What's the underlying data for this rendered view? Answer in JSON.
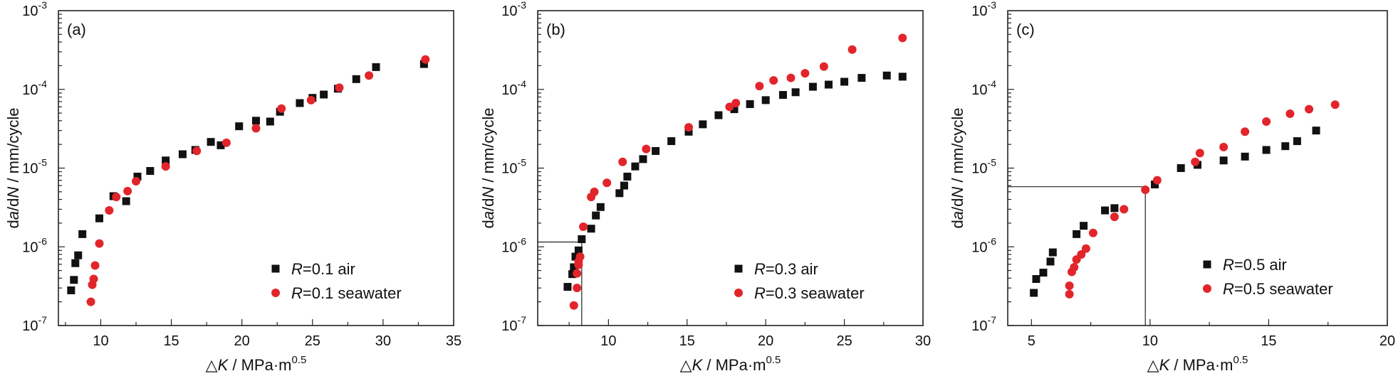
{
  "chart_data": [
    {
      "type": "scatter",
      "panel_label": "(a)",
      "xlabel": {
        "prefix": "△",
        "var": "K",
        "suffix": " / MPa·m",
        "sup": "0.5"
      },
      "ylabel": {
        "pre": "d",
        "v1": "a",
        "mid": "/d",
        "v2": "N",
        "post": " / mm/cycle"
      },
      "xlim": [
        7,
        35
      ],
      "ylim": [
        1e-07,
        0.001
      ],
      "yscale": "log",
      "xticks": [
        10,
        15,
        20,
        25,
        30,
        35
      ],
      "ytick_exponents": [
        "-7",
        "-6",
        "-5",
        "-4",
        "-3"
      ],
      "tick_base": "10",
      "legend": {
        "position": "bottom-right",
        "entries": [
          {
            "pre": "",
            "var": "R",
            "text": "=0.1 air"
          },
          {
            "pre": "",
            "var": "R",
            "text": "=0.1 seawater"
          }
        ]
      },
      "guide": null,
      "series": [
        {
          "name": "R=0.1 air",
          "marker": "square",
          "color": "#111111",
          "points": [
            [
              7.9,
              2.8e-07
            ],
            [
              8.1,
              3.8e-07
            ],
            [
              8.2,
              6.2e-07
            ],
            [
              8.4,
              7.8e-07
            ],
            [
              8.7,
              1.45e-06
            ],
            [
              9.9,
              2.3e-06
            ],
            [
              10.9,
              4.4e-06
            ],
            [
              11.8,
              3.8e-06
            ],
            [
              12.6,
              7.8e-06
            ],
            [
              13.5,
              9.2e-06
            ],
            [
              14.6,
              1.25e-05
            ],
            [
              15.8,
              1.5e-05
            ],
            [
              16.7,
              1.7e-05
            ],
            [
              17.8,
              2.15e-05
            ],
            [
              18.5,
              1.95e-05
            ],
            [
              19.8,
              3.4e-05
            ],
            [
              21.0,
              4e-05
            ],
            [
              22.0,
              3.9e-05
            ],
            [
              22.7,
              5.2e-05
            ],
            [
              24.1,
              6.7e-05
            ],
            [
              25.0,
              7.8e-05
            ],
            [
              25.8,
              8.6e-05
            ],
            [
              26.8,
              0.000102
            ],
            [
              28.1,
              0.000135
            ],
            [
              29.5,
              0.000192
            ],
            [
              32.9,
              0.00021
            ]
          ]
        },
        {
          "name": "R=0.1 seawater",
          "marker": "circle",
          "color": "#e2252b",
          "points": [
            [
              9.3,
              2e-07
            ],
            [
              9.4,
              3.3e-07
            ],
            [
              9.5,
              3.9e-07
            ],
            [
              9.6,
              5.8e-07
            ],
            [
              9.9,
              1.1e-06
            ],
            [
              10.6,
              2.9e-06
            ],
            [
              11.1,
              4.3e-06
            ],
            [
              11.9,
              5.1e-06
            ],
            [
              12.5,
              6.8e-06
            ],
            [
              14.6,
              1.05e-05
            ],
            [
              16.8,
              1.65e-05
            ],
            [
              18.9,
              2.1e-05
            ],
            [
              21.0,
              3.2e-05
            ],
            [
              22.8,
              5.7e-05
            ],
            [
              24.9,
              7.3e-05
            ],
            [
              26.9,
              0.000105
            ],
            [
              29.0,
              0.00015
            ],
            [
              33.0,
              0.00024
            ]
          ]
        }
      ]
    },
    {
      "type": "scatter",
      "panel_label": "(b)",
      "xlabel": {
        "prefix": "△",
        "var": "K",
        "suffix": " / MPa·m",
        "sup": "0.5"
      },
      "ylabel": {
        "pre": "d",
        "v1": "a",
        "mid": "/d",
        "v2": "N",
        "post": " / mm/cycle"
      },
      "xlim": [
        5.5,
        30
      ],
      "ylim": [
        1e-07,
        0.001
      ],
      "yscale": "log",
      "xticks": [
        10,
        15,
        20,
        25,
        30
      ],
      "ytick_exponents": [
        "-7",
        "-6",
        "-5",
        "-4",
        "-3"
      ],
      "tick_base": "10",
      "legend": {
        "position": "bottom-right",
        "entries": [
          {
            "pre": "",
            "var": "R",
            "text": "=0.3 air"
          },
          {
            "pre": "",
            "var": "R",
            "text": "=0.3 seawater"
          }
        ]
      },
      "guide": {
        "x": 8.3,
        "y": 1.15e-06
      },
      "series": [
        {
          "name": "R=0.3 air",
          "marker": "square",
          "color": "#111111",
          "points": [
            [
              7.4,
              3.1e-07
            ],
            [
              7.7,
              4.5e-07
            ],
            [
              7.8,
              5.5e-07
            ],
            [
              7.9,
              7.5e-07
            ],
            [
              8.1,
              9e-07
            ],
            [
              8.3,
              1.25e-06
            ],
            [
              8.9,
              1.7e-06
            ],
            [
              9.2,
              2.5e-06
            ],
            [
              9.5,
              3.2e-06
            ],
            [
              10.7,
              4.8e-06
            ],
            [
              11.0,
              6e-06
            ],
            [
              11.2,
              7.8e-06
            ],
            [
              11.7,
              1.05e-05
            ],
            [
              12.2,
              1.3e-05
            ],
            [
              13.0,
              1.65e-05
            ],
            [
              14.0,
              2.2e-05
            ],
            [
              15.1,
              2.9e-05
            ],
            [
              16.0,
              3.6e-05
            ],
            [
              17.0,
              4.7e-05
            ],
            [
              18.0,
              5.6e-05
            ],
            [
              19.0,
              6.5e-05
            ],
            [
              20.0,
              7.3e-05
            ],
            [
              21.1,
              8.5e-05
            ],
            [
              21.9,
              9.2e-05
            ],
            [
              23.0,
              0.000108
            ],
            [
              24.0,
              0.000115
            ],
            [
              25.0,
              0.000125
            ],
            [
              26.1,
              0.00014
            ],
            [
              27.7,
              0.00015
            ],
            [
              28.7,
              0.000145
            ]
          ]
        },
        {
          "name": "R=0.3 seawater",
          "marker": "circle",
          "color": "#e2252b",
          "points": [
            [
              7.8,
              1.8e-07
            ],
            [
              8.0,
              3e-07
            ],
            [
              8.0,
              4.6e-07
            ],
            [
              8.1,
              5.9e-07
            ],
            [
              8.2,
              7.5e-07
            ],
            [
              8.1,
              6.5e-07
            ],
            [
              8.4,
              1.8e-06
            ],
            [
              8.9,
              4.3e-06
            ],
            [
              9.1,
              5e-06
            ],
            [
              9.9,
              6.5e-06
            ],
            [
              10.9,
              1.2e-05
            ],
            [
              12.4,
              1.75e-05
            ],
            [
              15.1,
              3.3e-05
            ],
            [
              17.7,
              6e-05
            ],
            [
              18.1,
              6.7e-05
            ],
            [
              19.6,
              0.00011
            ],
            [
              20.5,
              0.00013
            ],
            [
              21.6,
              0.00014
            ],
            [
              22.5,
              0.00016
            ],
            [
              23.7,
              0.000195
            ],
            [
              25.5,
              0.00032
            ],
            [
              28.7,
              0.00045
            ]
          ]
        }
      ]
    },
    {
      "type": "scatter",
      "panel_label": "(c)",
      "xlabel": {
        "prefix": "△",
        "var": "K",
        "suffix": " / MPa·m",
        "sup": "0.5"
      },
      "ylabel": {
        "pre": "d",
        "v1": "a",
        "mid": "/d",
        "v2": "N",
        "post": " / mm/cycle"
      },
      "xlim": [
        4,
        20
      ],
      "ylim": [
        1e-07,
        0.001
      ],
      "yscale": "log",
      "xticks": [
        5,
        10,
        15,
        20
      ],
      "ytick_exponents": [
        "-7",
        "-6",
        "-5",
        "-4",
        "-3"
      ],
      "tick_base": "10",
      "legend": {
        "position": "bottom-right",
        "entries": [
          {
            "pre": "",
            "var": "R",
            "text": "=0.5 air"
          },
          {
            "pre": "",
            "var": "R",
            "text": "=0.5 seawater"
          }
        ]
      },
      "guide": {
        "x": 9.8,
        "y": 5.8e-06
      },
      "series": [
        {
          "name": "R=0.5 air",
          "marker": "square",
          "color": "#111111",
          "points": [
            [
              5.1,
              2.6e-07
            ],
            [
              5.2,
              3.9e-07
            ],
            [
              5.5,
              4.7e-07
            ],
            [
              5.8,
              6.5e-07
            ],
            [
              5.9,
              8.5e-07
            ],
            [
              6.9,
              1.45e-06
            ],
            [
              7.2,
              1.85e-06
            ],
            [
              8.1,
              2.9e-06
            ],
            [
              8.5,
              3.1e-06
            ],
            [
              10.2,
              6.2e-06
            ],
            [
              11.3,
              1e-05
            ],
            [
              12.0,
              1.1e-05
            ],
            [
              13.1,
              1.25e-05
            ],
            [
              14.0,
              1.4e-05
            ],
            [
              14.9,
              1.7e-05
            ],
            [
              15.7,
              1.9e-05
            ],
            [
              16.2,
              2.2e-05
            ],
            [
              17.0,
              3e-05
            ]
          ]
        },
        {
          "name": "R=0.5 seawater",
          "marker": "circle",
          "color": "#e2252b",
          "points": [
            [
              6.6,
              2.5e-07
            ],
            [
              6.6,
              3.2e-07
            ],
            [
              6.7,
              4.8e-07
            ],
            [
              6.8,
              5.5e-07
            ],
            [
              6.9,
              6.9e-07
            ],
            [
              7.1,
              8e-07
            ],
            [
              7.3,
              9.5e-07
            ],
            [
              7.6,
              1.5e-06
            ],
            [
              8.5,
              2.4e-06
            ],
            [
              8.9,
              3e-06
            ],
            [
              9.8,
              5.3e-06
            ],
            [
              10.3,
              7e-06
            ],
            [
              11.9,
              1.2e-05
            ],
            [
              12.1,
              1.55e-05
            ],
            [
              13.1,
              1.85e-05
            ],
            [
              14.0,
              2.9e-05
            ],
            [
              14.9,
              3.9e-05
            ],
            [
              15.9,
              4.9e-05
            ],
            [
              16.7,
              5.6e-05
            ],
            [
              17.8,
              6.4e-05
            ]
          ]
        }
      ]
    }
  ]
}
